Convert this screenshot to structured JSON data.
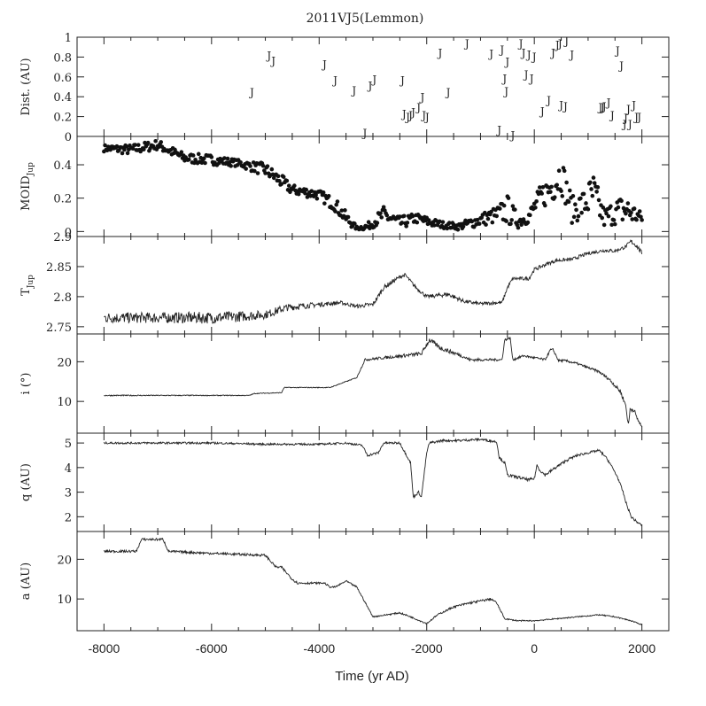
{
  "chart_data": {
    "type": "line",
    "title": "2011VJ5(Lemmon)",
    "xlabel": "Time (yr AD)",
    "xlim": [
      -8500,
      2500
    ],
    "x_ticks": [
      "-8000",
      "-6000",
      "-4000",
      "-2000",
      "0",
      "2000"
    ],
    "panels": [
      {
        "id": "dist",
        "kind": "marker",
        "marker": "J",
        "ylabel": "Dist. (AU)",
        "ylim": [
          0,
          1
        ],
        "y_ticks": [
          "0",
          "0.2",
          "0.4",
          "0.6",
          "0.8",
          "1"
        ],
        "x": [
          -5250,
          -4930,
          -4850,
          -3900,
          -3700,
          -3350,
          -3150,
          -3050,
          -2970,
          -2450,
          -2420,
          -2350,
          -2300,
          -2250,
          -2150,
          -2080,
          -2050,
          -1990,
          -1750,
          -1600,
          -1250,
          -800,
          -650,
          -600,
          -550,
          -520,
          -500,
          -400,
          -250,
          -200,
          -150,
          -100,
          -50,
          0,
          150,
          270,
          350,
          430,
          480,
          500,
          580,
          600,
          700,
          1230,
          1270,
          1300,
          1380,
          1450,
          1550,
          1620,
          1680,
          1700,
          1750,
          1780,
          1850,
          1900,
          1950
        ],
        "y": [
          0.45,
          0.82,
          0.77,
          0.73,
          0.57,
          0.47,
          0.04,
          0.52,
          0.58,
          0.57,
          0.23,
          0.2,
          0.22,
          0.25,
          0.3,
          0.4,
          0.22,
          0.2,
          0.85,
          0.45,
          0.94,
          0.84,
          0.07,
          0.88,
          0.59,
          0.46,
          0.76,
          0.02,
          0.94,
          0.85,
          0.63,
          0.83,
          0.59,
          0.81,
          0.26,
          0.37,
          0.85,
          0.93,
          0.94,
          0.32,
          0.31,
          0.97,
          0.83,
          0.3,
          0.3,
          0.31,
          0.35,
          0.22,
          0.87,
          0.72,
          0.13,
          0.19,
          0.28,
          0.13,
          0.32,
          0.2,
          0.2
        ]
      },
      {
        "id": "moid",
        "kind": "scatter",
        "ylabel": "MOID",
        "ylabel_sub": "Jup",
        "ylim": [
          -0.03,
          0.57
        ],
        "y_ticks": [
          "0",
          "0.2",
          "0.4"
        ],
        "x": [
          -8000,
          -7500,
          -7000,
          -6500,
          -6000,
          -5500,
          -5000,
          -4700,
          -4500,
          -4300,
          -4000,
          -3700,
          -3500,
          -3300,
          -3100,
          -2800,
          -2500,
          -2200,
          -2000,
          -1700,
          -1400,
          -1000,
          -700,
          -500,
          -300,
          -100,
          100,
          300,
          500,
          700,
          900,
          1100,
          1300,
          1500,
          1700,
          2000
        ],
        "y": [
          0.5,
          0.49,
          0.52,
          0.44,
          0.43,
          0.41,
          0.37,
          0.3,
          0.25,
          0.24,
          0.22,
          0.16,
          0.08,
          0.02,
          0.03,
          0.1,
          0.05,
          0.08,
          0.06,
          0.04,
          0.03,
          0.07,
          0.1,
          0.13,
          0.06,
          0.09,
          0.2,
          0.26,
          0.35,
          0.13,
          0.16,
          0.22,
          0.08,
          0.12,
          0.13,
          0.08
        ],
        "jitter": [
          0.02,
          0.03,
          0.03,
          0.03,
          0.03,
          0.02,
          0.04,
          0.04,
          0.03,
          0.03,
          0.03,
          0.04,
          0.04,
          0.01,
          0.02,
          0.05,
          0.04,
          0.03,
          0.03,
          0.02,
          0.02,
          0.04,
          0.05,
          0.09,
          0.04,
          0.04,
          0.07,
          0.1,
          0.12,
          0.08,
          0.09,
          0.14,
          0.06,
          0.08,
          0.1,
          0.03
        ]
      },
      {
        "id": "tjup",
        "kind": "line",
        "ylabel": "T",
        "ylabel_sub": "Jup",
        "ylim": [
          2.738,
          2.9
        ],
        "y_ticks": [
          "2.75",
          "2.8",
          "2.85",
          "2.9"
        ],
        "x": [
          -8000,
          -7000,
          -6000,
          -5500,
          -5000,
          -4600,
          -4000,
          -3600,
          -3300,
          -3000,
          -2800,
          -2500,
          -2400,
          -2200,
          -2000,
          -1600,
          -1300,
          -1000,
          -700,
          -600,
          -500,
          -400,
          -100,
          0,
          200,
          400,
          700,
          1000,
          1300,
          1500,
          1700,
          1800,
          1900,
          2000
        ],
        "y": [
          2.765,
          2.765,
          2.765,
          2.767,
          2.77,
          2.782,
          2.787,
          2.79,
          2.784,
          2.787,
          2.815,
          2.833,
          2.836,
          2.815,
          2.8,
          2.804,
          2.792,
          2.788,
          2.79,
          2.79,
          2.815,
          2.83,
          2.83,
          2.845,
          2.853,
          2.86,
          2.862,
          2.872,
          2.877,
          2.876,
          2.883,
          2.892,
          2.885,
          2.872
        ],
        "jitter": [
          0.009,
          0.009,
          0.01,
          0.009,
          0.007,
          0.006,
          0.004,
          0.003,
          0.003,
          0.004,
          0.004,
          0.003,
          0.003,
          0.003,
          0.003,
          0.004,
          0.003,
          0.003,
          0.003,
          0.003,
          0.003,
          0.003,
          0.003,
          0.003,
          0.003,
          0.003,
          0.003,
          0.003,
          0.003,
          0.003,
          0.003,
          0.004,
          0.004,
          0.004
        ]
      },
      {
        "id": "incl",
        "kind": "line",
        "ylabel": "i (°)",
        "ylim": [
          2,
          27
        ],
        "y_ticks": [
          "10",
          "20"
        ],
        "x": [
          -8000,
          -5300,
          -5200,
          -4700,
          -4650,
          -3800,
          -3600,
          -3300,
          -3150,
          -2100,
          -1950,
          -1750,
          -1350,
          -1200,
          -850,
          -600,
          -550,
          -450,
          -400,
          -200,
          0,
          200,
          300,
          350,
          450,
          500,
          600,
          800,
          1000,
          1200,
          1400,
          1600,
          1700,
          1750,
          1780,
          1850,
          1900,
          2000
        ],
        "y": [
          11.5,
          11.5,
          12,
          12.2,
          13.5,
          13.5,
          14.5,
          16,
          20.5,
          22,
          25.5,
          23.5,
          21.5,
          20.5,
          20.5,
          20.5,
          25.5,
          26,
          20.5,
          21.5,
          21,
          20.5,
          23,
          23,
          20.3,
          20.3,
          20.2,
          19.5,
          18.5,
          17.5,
          15.5,
          12.5,
          9,
          4,
          8,
          8,
          6,
          3.5
        ],
        "jitter": [
          0.15,
          0.1,
          0.1,
          0.1,
          0.1,
          0.1,
          0.1,
          0.1,
          0.3,
          0.5,
          0.6,
          0.6,
          0.4,
          0.4,
          0.3,
          0.3,
          0.3,
          0.3,
          0.3,
          0.3,
          0.3,
          0.3,
          0.3,
          0.3,
          0.3,
          0.3,
          0.3,
          0.3,
          0.3,
          0.3,
          0.4,
          0.5,
          0.6,
          0.6,
          0.6,
          0.6,
          0.6,
          0.4
        ]
      },
      {
        "id": "q",
        "kind": "line",
        "ylabel": "q (AU)",
        "ylim": [
          1.4,
          5.4
        ],
        "y_ticks": [
          "2",
          "3",
          "4",
          "5"
        ],
        "x": [
          -8000,
          -6000,
          -5000,
          -4000,
          -3500,
          -3200,
          -3100,
          -2900,
          -2800,
          -2500,
          -2300,
          -2250,
          -2150,
          -2100,
          -2000,
          -1950,
          -1700,
          -1400,
          -1000,
          -700,
          -650,
          -550,
          -500,
          -300,
          -100,
          0,
          50,
          100,
          200,
          400,
          600,
          800,
          1000,
          1200,
          1300,
          1400,
          1550,
          1650,
          1700,
          1800,
          1900,
          2000
        ],
        "y": [
          5,
          5,
          4.95,
          4.95,
          5,
          4.9,
          4.5,
          4.6,
          5,
          5,
          4.2,
          2.8,
          3,
          2.8,
          4.6,
          5,
          5.1,
          5.1,
          5.15,
          5.05,
          4.4,
          4.2,
          3.7,
          3.6,
          3.5,
          3.55,
          4.1,
          3.9,
          3.7,
          4,
          4.3,
          4.5,
          4.6,
          4.7,
          4.5,
          4.2,
          3.6,
          3,
          2.6,
          2,
          1.8,
          1.65
        ],
        "jitter": [
          0.04,
          0.04,
          0.04,
          0.04,
          0.04,
          0.04,
          0.05,
          0.05,
          0.04,
          0.05,
          0.05,
          0.05,
          0.05,
          0.05,
          0.05,
          0.05,
          0.05,
          0.05,
          0.05,
          0.05,
          0.06,
          0.06,
          0.06,
          0.06,
          0.06,
          0.06,
          0.06,
          0.06,
          0.06,
          0.06,
          0.06,
          0.05,
          0.05,
          0.05,
          0.05,
          0.05,
          0.05,
          0.05,
          0.05,
          0.05,
          0.05,
          0.04
        ]
      },
      {
        "id": "a",
        "kind": "line",
        "ylabel": "a (AU)",
        "ylim": [
          2,
          27
        ],
        "y_ticks": [
          "10",
          "20"
        ],
        "x": [
          -8000,
          -7400,
          -7300,
          -6900,
          -6800,
          -6000,
          -5000,
          -4800,
          -4700,
          -4500,
          -4400,
          -3900,
          -3800,
          -3700,
          -3500,
          -3300,
          -3100,
          -3000,
          -2500,
          -2300,
          -2000,
          -1800,
          -1500,
          -1200,
          -800,
          -700,
          -550,
          -300,
          0,
          400,
          800,
          1200,
          1500,
          1800,
          2000
        ],
        "y": [
          22,
          22,
          25,
          25,
          22,
          21.5,
          21,
          18,
          18,
          15,
          14,
          14,
          13,
          13,
          14.5,
          13,
          8,
          5.5,
          6.5,
          5.5,
          3.8,
          6,
          8,
          9,
          10,
          9,
          5,
          4.5,
          4.5,
          5,
          5.5,
          6,
          5.5,
          4.5,
          3.5
        ],
        "jitter": [
          0.3,
          0.3,
          0.3,
          0.3,
          0.3,
          0.3,
          0.3,
          0.3,
          0.3,
          0.3,
          0.3,
          0.2,
          0.2,
          0.2,
          0.2,
          0.2,
          0.2,
          0.15,
          0.2,
          0.2,
          0.2,
          0.2,
          0.25,
          0.3,
          0.3,
          0.25,
          0.15,
          0.15,
          0.15,
          0.15,
          0.15,
          0.15,
          0.15,
          0.15,
          0.1
        ]
      }
    ]
  }
}
